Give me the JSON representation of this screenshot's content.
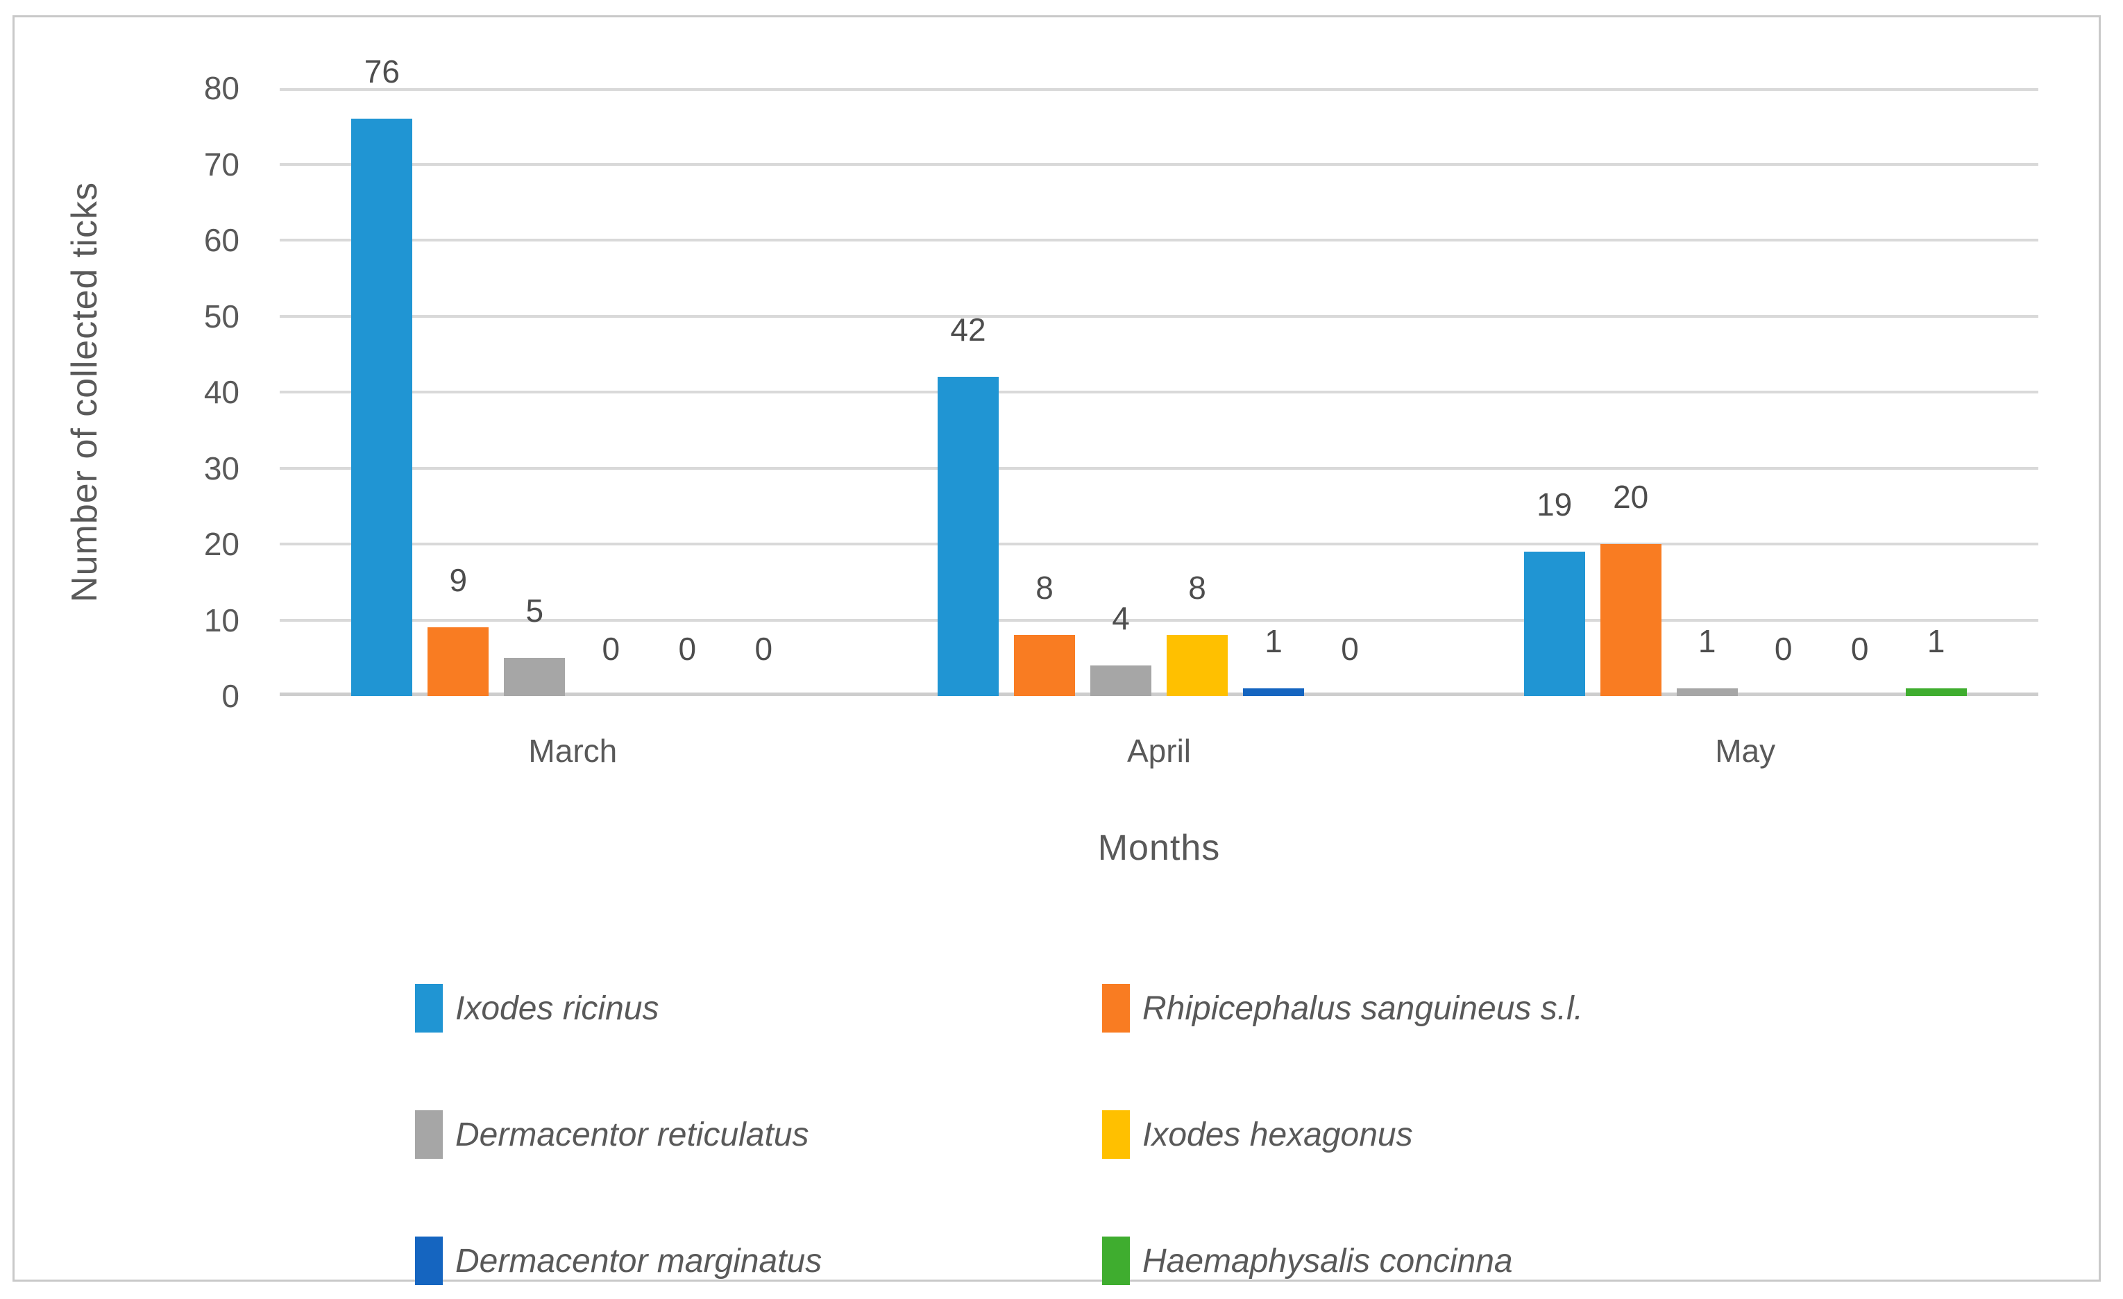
{
  "chart_data": {
    "type": "bar",
    "title": "",
    "categories": [
      "March",
      "April",
      "May"
    ],
    "series": [
      {
        "name": "Ixodes ricinus",
        "color": "#2095d3",
        "values": [
          76,
          42,
          19
        ]
      },
      {
        "name": "Rhipicephalus sanguineus s.l.",
        "color": "#f97c22",
        "values": [
          9,
          8,
          20
        ]
      },
      {
        "name": "Dermacentor reticulatus",
        "color": "#a6a6a6",
        "values": [
          5,
          4,
          1
        ]
      },
      {
        "name": "Ixodes hexagonus",
        "color": "#ffc000",
        "values": [
          0,
          8,
          0
        ]
      },
      {
        "name": "Dermacentor marginatus",
        "color": "#1565c0",
        "values": [
          0,
          1,
          0
        ]
      },
      {
        "name": "Haemaphysalis concinna",
        "color": "#3fad2f",
        "values": [
          0,
          0,
          1
        ]
      }
    ],
    "xlabel": "Months",
    "ylabel": "Number of collected ticks",
    "ylim": [
      0,
      80
    ],
    "yticks": [
      "0",
      "10",
      "20",
      "30",
      "40",
      "50",
      "60",
      "70",
      "80"
    ],
    "grid": true,
    "legend_position": "bottom",
    "gridline_color": "#d9d9d9",
    "frame_color": "#c9c9c9"
  }
}
